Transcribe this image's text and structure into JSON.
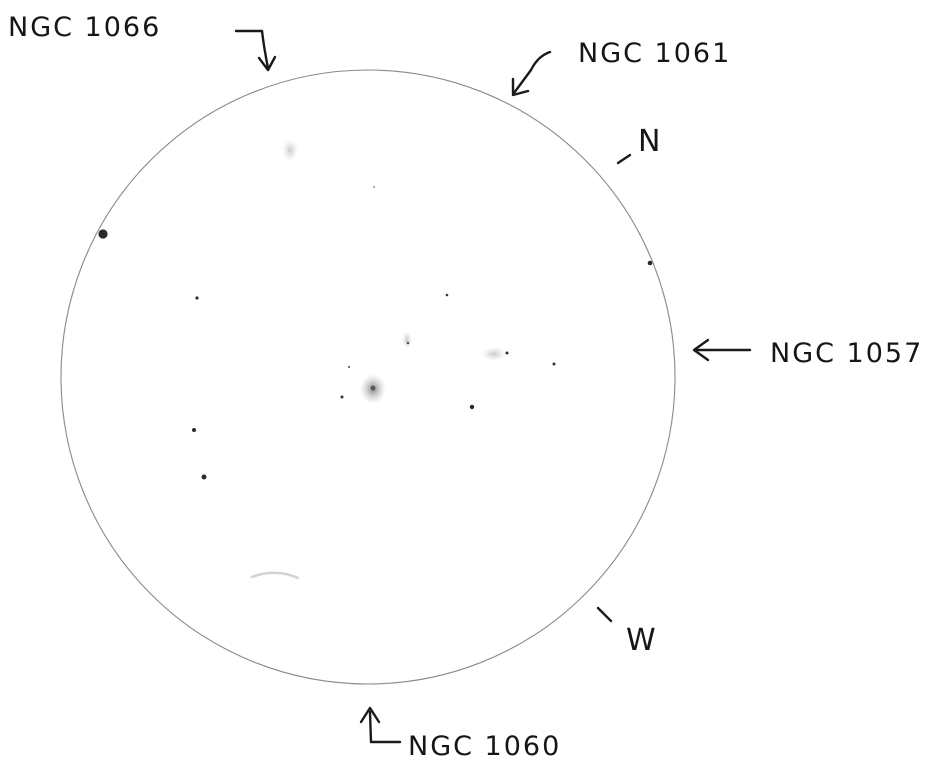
{
  "labels": {
    "ngc1066": "NGC 1066",
    "ngc1061": "NGC 1061",
    "ngc1057": "NGC 1057",
    "ngc1060": "NGC 1060",
    "north": "N",
    "west": "W"
  },
  "colors": {
    "paper": "#ffffff",
    "ink": "#1a1a1a",
    "circle": "#8a8a8a",
    "galaxy_haze": "#9a9a9a"
  }
}
